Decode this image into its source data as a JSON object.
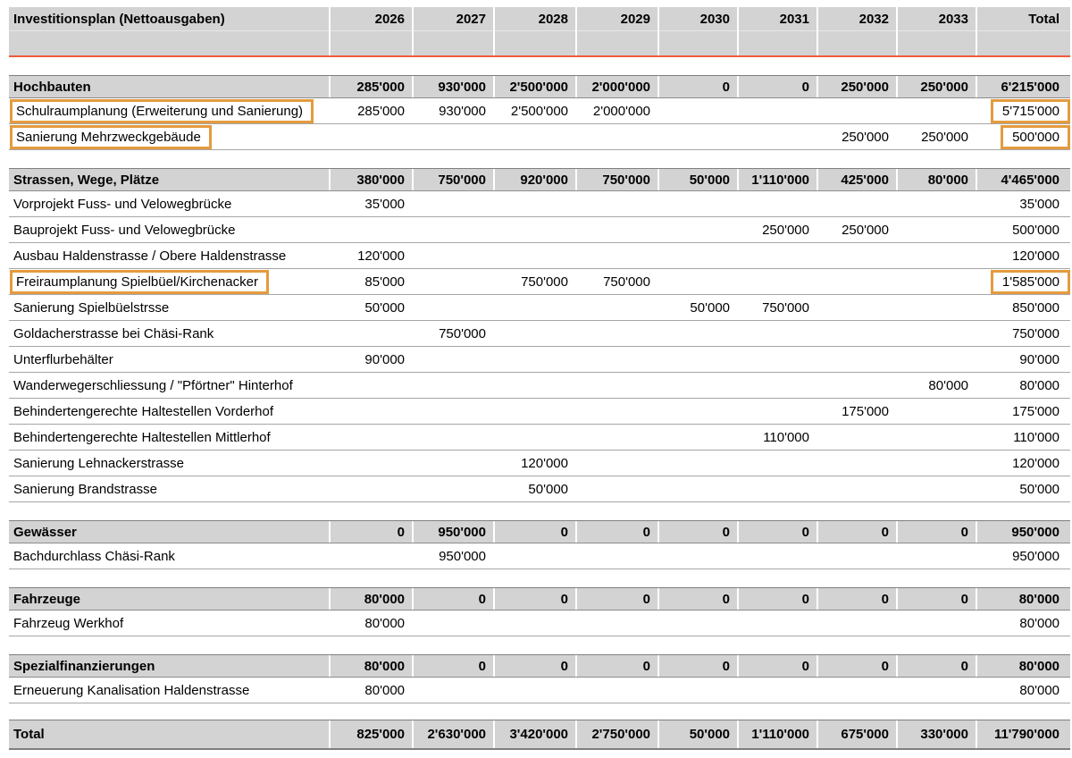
{
  "title": "Investitionsplan (Nettoausgaben)",
  "columns": [
    "2026",
    "2027",
    "2028",
    "2029",
    "2030",
    "2031",
    "2032",
    "2033",
    "Total"
  ],
  "sections": [
    {
      "label": "Hochbauten",
      "values": [
        "285'000",
        "930'000",
        "2'500'000",
        "2'000'000",
        "0",
        "0",
        "250'000",
        "250'000",
        "6'215'000"
      ],
      "rows": [
        {
          "label": "Schulraumplanung (Erweiterung und Sanierung)",
          "values": [
            "285'000",
            "930'000",
            "2'500'000",
            "2'000'000",
            "",
            "",
            "",
            "",
            "5'715'000"
          ],
          "highlight_label": true,
          "highlight_total": true
        },
        {
          "label": "Sanierung Mehrzweckgebäude",
          "values": [
            "",
            "",
            "",
            "",
            "",
            "",
            "250'000",
            "250'000",
            "500'000"
          ],
          "highlight_label": true,
          "highlight_total": true
        }
      ]
    },
    {
      "label": "Strassen, Wege, Plätze",
      "values": [
        "380'000",
        "750'000",
        "920'000",
        "750'000",
        "50'000",
        "1'110'000",
        "425'000",
        "80'000",
        "4'465'000"
      ],
      "rows": [
        {
          "label": "Vorprojekt Fuss- und Velowegbrücke",
          "values": [
            "35'000",
            "",
            "",
            "",
            "",
            "",
            "",
            "",
            "35'000"
          ],
          "highlight_label": false,
          "highlight_total": false
        },
        {
          "label": "Bauprojekt Fuss- und Velowegbrücke",
          "values": [
            "",
            "",
            "",
            "",
            "",
            "250'000",
            "250'000",
            "",
            "500'000"
          ],
          "highlight_label": false,
          "highlight_total": false
        },
        {
          "label": "Ausbau Haldenstrasse / Obere Haldenstrasse",
          "values": [
            "120'000",
            "",
            "",
            "",
            "",
            "",
            "",
            "",
            "120'000"
          ],
          "highlight_label": false,
          "highlight_total": false
        },
        {
          "label": "Freiraumplanung Spielbüel/Kirchenacker",
          "values": [
            "85'000",
            "",
            "750'000",
            "750'000",
            "",
            "",
            "",
            "",
            "1'585'000"
          ],
          "highlight_label": true,
          "highlight_total": true
        },
        {
          "label": "Sanierung Spielbüelstrsse",
          "values": [
            "50'000",
            "",
            "",
            "",
            "50'000",
            "750'000",
            "",
            "",
            "850'000"
          ],
          "highlight_label": false,
          "highlight_total": false
        },
        {
          "label": "Goldacherstrasse bei Chäsi-Rank",
          "values": [
            "",
            "750'000",
            "",
            "",
            "",
            "",
            "",
            "",
            "750'000"
          ],
          "highlight_label": false,
          "highlight_total": false
        },
        {
          "label": "Unterflurbehälter",
          "values": [
            "90'000",
            "",
            "",
            "",
            "",
            "",
            "",
            "",
            "90'000"
          ],
          "highlight_label": false,
          "highlight_total": false
        },
        {
          "label": "Wanderwegerschliessung / \"Pförtner\" Hinterhof",
          "values": [
            "",
            "",
            "",
            "",
            "",
            "",
            "",
            "80'000",
            "80'000"
          ],
          "highlight_label": false,
          "highlight_total": false
        },
        {
          "label": "Behindertengerechte Haltestellen Vorderhof",
          "values": [
            "",
            "",
            "",
            "",
            "",
            "",
            "175'000",
            "",
            "175'000"
          ],
          "highlight_label": false,
          "highlight_total": false
        },
        {
          "label": "Behindertengerechte Haltestellen Mittlerhof",
          "values": [
            "",
            "",
            "",
            "",
            "",
            "110'000",
            "",
            "",
            "110'000"
          ],
          "highlight_label": false,
          "highlight_total": false
        },
        {
          "label": "Sanierung Lehnackerstrasse",
          "values": [
            "",
            "",
            "120'000",
            "",
            "",
            "",
            "",
            "",
            "120'000"
          ],
          "highlight_label": false,
          "highlight_total": false
        },
        {
          "label": "Sanierung Brandstrasse",
          "values": [
            "",
            "",
            "50'000",
            "",
            "",
            "",
            "",
            "",
            "50'000"
          ],
          "highlight_label": false,
          "highlight_total": false
        }
      ]
    },
    {
      "label": "Gewässer",
      "values": [
        "0",
        "950'000",
        "0",
        "0",
        "0",
        "0",
        "0",
        "0",
        "950'000"
      ],
      "rows": [
        {
          "label": "Bachdurchlass Chäsi-Rank",
          "values": [
            "",
            "950'000",
            "",
            "",
            "",
            "",
            "",
            "",
            "950'000"
          ],
          "highlight_label": false,
          "highlight_total": false
        }
      ]
    },
    {
      "label": "Fahrzeuge",
      "values": [
        "80'000",
        "0",
        "0",
        "0",
        "0",
        "0",
        "0",
        "0",
        "80'000"
      ],
      "rows": [
        {
          "label": "Fahrzeug Werkhof",
          "values": [
            "80'000",
            "",
            "",
            "",
            "",
            "",
            "",
            "",
            "80'000"
          ],
          "highlight_label": false,
          "highlight_total": false
        }
      ]
    },
    {
      "label": "Spezialfinanzierungen",
      "values": [
        "80'000",
        "0",
        "0",
        "0",
        "0",
        "0",
        "0",
        "0",
        "80'000"
      ],
      "rows": [
        {
          "label": "Erneuerung Kanalisation Haldenstrasse",
          "values": [
            "80'000",
            "",
            "",
            "",
            "",
            "",
            "",
            "",
            "80'000"
          ],
          "highlight_label": false,
          "highlight_total": false
        }
      ]
    }
  ],
  "grand_total": {
    "label": "Total",
    "values": [
      "825'000",
      "2'630'000",
      "3'420'000",
      "2'750'000",
      "50'000",
      "1'110'000",
      "675'000",
      "330'000",
      "11'790'000"
    ]
  },
  "colors": {
    "header_bg": "#d3d3d3",
    "header_underline": "#f05a3c",
    "section_bg": "#d3d3d3",
    "row_border": "#a6a6a6",
    "section_border": "#7f7f7f",
    "highlight_border": "#e49b3e"
  }
}
